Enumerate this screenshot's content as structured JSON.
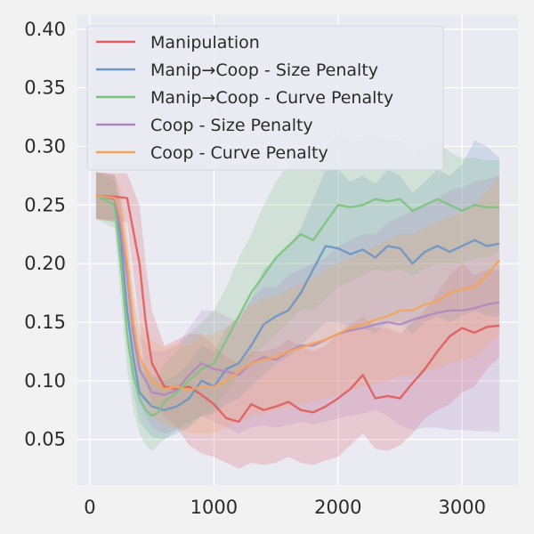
{
  "chart_data": {
    "type": "line",
    "title": "",
    "xlabel": "",
    "ylabel": "",
    "xlim": [
      -100,
      3450
    ],
    "ylim": [
      0.011,
      0.412
    ],
    "x_ticks": [
      0,
      1000,
      2000,
      3000
    ],
    "x_tick_labels": [
      "0",
      "1000",
      "2000",
      "3000"
    ],
    "y_ticks": [
      0.05,
      0.1,
      0.15,
      0.2,
      0.25,
      0.3,
      0.35,
      0.4
    ],
    "y_tick_labels": [
      "0.05",
      "0.10",
      "0.15",
      "0.20",
      "0.25",
      "0.30",
      "0.35",
      "0.40"
    ],
    "grid": true,
    "legend_position": "top-left",
    "series": [
      {
        "name": "Manipulation",
        "color": "#e05c5c",
        "x": [
          50,
          200,
          300,
          400,
          450,
          500,
          600,
          700,
          800,
          900,
          1000,
          1100,
          1200,
          1300,
          1400,
          1500,
          1600,
          1700,
          1800,
          1900,
          2000,
          2100,
          2200,
          2300,
          2400,
          2500,
          2600,
          2700,
          2800,
          2900,
          3000,
          3100,
          3200,
          3300
        ],
        "y": [
          0.258,
          0.257,
          0.256,
          0.2,
          0.15,
          0.115,
          0.095,
          0.093,
          0.095,
          0.088,
          0.08,
          0.068,
          0.065,
          0.08,
          0.075,
          0.078,
          0.082,
          0.075,
          0.073,
          0.078,
          0.085,
          0.093,
          0.105,
          0.085,
          0.087,
          0.085,
          0.098,
          0.11,
          0.125,
          0.138,
          0.145,
          0.141,
          0.146,
          0.147
        ],
        "lower": [
          0.238,
          0.237,
          0.235,
          0.15,
          0.1,
          0.08,
          0.07,
          0.06,
          0.045,
          0.038,
          0.035,
          0.03,
          0.025,
          0.03,
          0.028,
          0.03,
          0.035,
          0.03,
          0.028,
          0.032,
          0.035,
          0.045,
          0.055,
          0.042,
          0.04,
          0.045,
          0.055,
          0.068,
          0.075,
          0.08,
          0.09,
          0.095,
          0.11,
          0.12
        ],
        "upper": [
          0.278,
          0.277,
          0.277,
          0.25,
          0.2,
          0.16,
          0.13,
          0.135,
          0.14,
          0.14,
          0.13,
          0.12,
          0.115,
          0.125,
          0.125,
          0.128,
          0.135,
          0.13,
          0.125,
          0.13,
          0.14,
          0.148,
          0.155,
          0.145,
          0.145,
          0.14,
          0.15,
          0.16,
          0.175,
          0.19,
          0.2,
          0.19,
          0.195,
          0.195
        ]
      },
      {
        "name": "Manip→Coop - Size Penalty",
        "color": "#6b96c4",
        "x": [
          50,
          200,
          250,
          300,
          350,
          400,
          500,
          600,
          700,
          800,
          900,
          1000,
          1100,
          1200,
          1300,
          1400,
          1500,
          1600,
          1700,
          1800,
          1900,
          2000,
          2100,
          2200,
          2300,
          2400,
          2500,
          2600,
          2700,
          2800,
          2900,
          3000,
          3100,
          3200,
          3300
        ],
        "y": [
          0.258,
          0.255,
          0.22,
          0.16,
          0.12,
          0.09,
          0.078,
          0.075,
          0.078,
          0.085,
          0.1,
          0.095,
          0.11,
          0.115,
          0.13,
          0.148,
          0.155,
          0.16,
          0.175,
          0.195,
          0.215,
          0.213,
          0.208,
          0.212,
          0.205,
          0.215,
          0.213,
          0.2,
          0.21,
          0.215,
          0.21,
          0.215,
          0.22,
          0.215,
          0.217
        ],
        "lower": [
          0.238,
          0.235,
          0.19,
          0.13,
          0.09,
          0.065,
          0.052,
          0.05,
          0.055,
          0.06,
          0.07,
          0.072,
          0.08,
          0.085,
          0.095,
          0.105,
          0.115,
          0.12,
          0.13,
          0.14,
          0.15,
          0.15,
          0.145,
          0.145,
          0.14,
          0.15,
          0.15,
          0.14,
          0.15,
          0.155,
          0.15,
          0.155,
          0.16,
          0.155,
          0.155
        ],
        "upper": [
          0.278,
          0.275,
          0.25,
          0.19,
          0.15,
          0.12,
          0.105,
          0.1,
          0.105,
          0.115,
          0.13,
          0.125,
          0.145,
          0.155,
          0.17,
          0.195,
          0.205,
          0.215,
          0.23,
          0.255,
          0.28,
          0.28,
          0.27,
          0.275,
          0.268,
          0.28,
          0.275,
          0.26,
          0.27,
          0.28,
          0.275,
          0.285,
          0.305,
          0.3,
          0.29
        ]
      },
      {
        "name": "Manip→Coop - Curve Penalty",
        "color": "#7cc47c",
        "x": [
          50,
          200,
          250,
          300,
          350,
          400,
          450,
          500,
          550,
          600,
          700,
          800,
          900,
          1000,
          1100,
          1200,
          1300,
          1400,
          1500,
          1600,
          1700,
          1800,
          1900,
          2000,
          2100,
          2200,
          2300,
          2400,
          2500,
          2600,
          2700,
          2800,
          2900,
          3000,
          3100,
          3200,
          3300
        ],
        "y": [
          0.258,
          0.25,
          0.2,
          0.14,
          0.105,
          0.085,
          0.075,
          0.07,
          0.073,
          0.082,
          0.09,
          0.1,
          0.11,
          0.115,
          0.135,
          0.155,
          0.175,
          0.19,
          0.205,
          0.215,
          0.225,
          0.22,
          0.235,
          0.25,
          0.248,
          0.25,
          0.255,
          0.253,
          0.255,
          0.245,
          0.25,
          0.255,
          0.25,
          0.245,
          0.25,
          0.248,
          0.248
        ],
        "lower": [
          0.238,
          0.23,
          0.17,
          0.11,
          0.075,
          0.055,
          0.045,
          0.04,
          0.045,
          0.05,
          0.058,
          0.062,
          0.07,
          0.075,
          0.09,
          0.105,
          0.12,
          0.13,
          0.14,
          0.15,
          0.16,
          0.16,
          0.17,
          0.18,
          0.185,
          0.19,
          0.195,
          0.193,
          0.195,
          0.19,
          0.195,
          0.2,
          0.2,
          0.2,
          0.205,
          0.205,
          0.21
        ],
        "upper": [
          0.278,
          0.27,
          0.23,
          0.17,
          0.135,
          0.115,
          0.105,
          0.1,
          0.105,
          0.115,
          0.125,
          0.14,
          0.15,
          0.16,
          0.18,
          0.205,
          0.225,
          0.25,
          0.27,
          0.285,
          0.295,
          0.285,
          0.3,
          0.31,
          0.305,
          0.305,
          0.31,
          0.305,
          0.305,
          0.295,
          0.3,
          0.305,
          0.295,
          0.29,
          0.29,
          0.288,
          0.288
        ]
      },
      {
        "name": "Coop - Size Penalty",
        "color": "#b088c0",
        "x": [
          50,
          200,
          250,
          300,
          350,
          400,
          500,
          600,
          700,
          800,
          900,
          1000,
          1100,
          1200,
          1300,
          1400,
          1500,
          1600,
          1700,
          1800,
          1900,
          2000,
          2100,
          2200,
          2300,
          2400,
          2500,
          2600,
          2700,
          2800,
          2900,
          3000,
          3100,
          3200,
          3300
        ],
        "y": [
          0.258,
          0.256,
          0.23,
          0.19,
          0.14,
          0.11,
          0.09,
          0.088,
          0.092,
          0.105,
          0.115,
          0.11,
          0.108,
          0.105,
          0.115,
          0.12,
          0.118,
          0.125,
          0.13,
          0.13,
          0.135,
          0.14,
          0.143,
          0.145,
          0.148,
          0.15,
          0.148,
          0.152,
          0.155,
          0.158,
          0.16,
          0.16,
          0.162,
          0.165,
          0.167
        ],
        "lower": [
          0.238,
          0.236,
          0.205,
          0.16,
          0.11,
          0.08,
          0.06,
          0.055,
          0.058,
          0.065,
          0.07,
          0.065,
          0.06,
          0.055,
          0.06,
          0.062,
          0.06,
          0.062,
          0.065,
          0.063,
          0.065,
          0.068,
          0.07,
          0.072,
          0.075,
          0.07,
          0.062,
          0.058,
          0.06,
          0.06,
          0.058,
          0.058,
          0.057,
          0.057,
          0.056
        ],
        "upper": [
          0.278,
          0.276,
          0.255,
          0.22,
          0.17,
          0.14,
          0.125,
          0.125,
          0.13,
          0.145,
          0.16,
          0.16,
          0.155,
          0.15,
          0.17,
          0.18,
          0.18,
          0.19,
          0.195,
          0.2,
          0.205,
          0.215,
          0.22,
          0.225,
          0.225,
          0.235,
          0.24,
          0.245,
          0.25,
          0.255,
          0.262,
          0.265,
          0.27,
          0.272,
          0.275
        ]
      },
      {
        "name": "Coop - Curve Penalty",
        "color": "#f5a35a",
        "x": [
          50,
          200,
          250,
          300,
          350,
          400,
          500,
          600,
          700,
          800,
          900,
          1000,
          1100,
          1200,
          1300,
          1400,
          1500,
          1600,
          1700,
          1800,
          1900,
          2000,
          2100,
          2200,
          2300,
          2400,
          2500,
          2600,
          2700,
          2800,
          2900,
          3000,
          3100,
          3200,
          3300
        ],
        "y": [
          0.258,
          0.256,
          0.24,
          0.2,
          0.15,
          0.12,
          0.1,
          0.093,
          0.095,
          0.092,
          0.095,
          0.095,
          0.1,
          0.108,
          0.115,
          0.118,
          0.12,
          0.125,
          0.128,
          0.132,
          0.135,
          0.14,
          0.145,
          0.148,
          0.152,
          0.155,
          0.16,
          0.16,
          0.165,
          0.168,
          0.175,
          0.178,
          0.18,
          0.19,
          0.203
        ],
        "lower": [
          0.238,
          0.236,
          0.215,
          0.17,
          0.12,
          0.09,
          0.07,
          0.062,
          0.06,
          0.055,
          0.055,
          0.055,
          0.06,
          0.065,
          0.07,
          0.072,
          0.075,
          0.078,
          0.08,
          0.083,
          0.085,
          0.088,
          0.092,
          0.095,
          0.098,
          0.1,
          0.105,
          0.105,
          0.108,
          0.11,
          0.115,
          0.118,
          0.12,
          0.13,
          0.14
        ],
        "upper": [
          0.278,
          0.276,
          0.265,
          0.23,
          0.18,
          0.15,
          0.135,
          0.128,
          0.132,
          0.13,
          0.138,
          0.14,
          0.145,
          0.155,
          0.165,
          0.17,
          0.172,
          0.178,
          0.183,
          0.188,
          0.195,
          0.2,
          0.205,
          0.21,
          0.215,
          0.22,
          0.225,
          0.225,
          0.23,
          0.235,
          0.24,
          0.243,
          0.25,
          0.262,
          0.275
        ]
      }
    ]
  }
}
